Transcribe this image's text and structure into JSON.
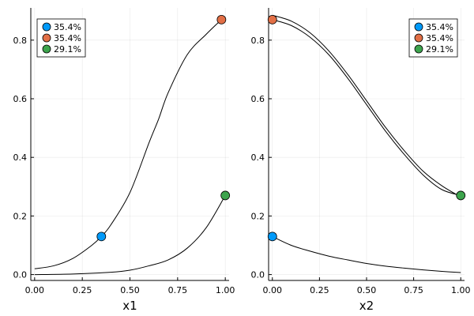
{
  "chart_data": [
    {
      "type": "line",
      "xlabel": "x1",
      "ylabel": "",
      "xlim": [
        -0.02,
        1.02
      ],
      "ylim": [
        -0.02,
        0.91
      ],
      "xticks": [
        0.0,
        0.25,
        0.5,
        0.75,
        1.0
      ],
      "xtick_labels": [
        "0.00",
        "0.25",
        "0.50",
        "0.75",
        "1.00"
      ],
      "yticks": [
        0.0,
        0.2,
        0.4,
        0.6,
        0.8
      ],
      "ytick_labels": [
        "0.0",
        "0.2",
        "0.4",
        "0.6",
        "0.8"
      ],
      "grid": true,
      "legend_position": "top-left",
      "legend": [
        {
          "label": "35.4%",
          "color": "#009AFA"
        },
        {
          "label": "35.4%",
          "color": "#E26F46"
        },
        {
          "label": "29.1%",
          "color": "#3DA44D"
        }
      ],
      "lines": [
        {
          "color": "#000000",
          "points": [
            [
              0.0,
              0.02
            ],
            [
              0.1,
              0.03
            ],
            [
              0.2,
              0.055
            ],
            [
              0.3,
              0.1
            ],
            [
              0.35,
              0.13
            ],
            [
              0.4,
              0.17
            ],
            [
              0.5,
              0.28
            ],
            [
              0.6,
              0.45
            ],
            [
              0.65,
              0.53
            ],
            [
              0.7,
              0.62
            ],
            [
              0.8,
              0.75
            ],
            [
              0.9,
              0.82
            ],
            [
              0.98,
              0.87
            ]
          ]
        },
        {
          "color": "#000000",
          "points": [
            [
              0.0,
              0.0
            ],
            [
              0.2,
              0.002
            ],
            [
              0.4,
              0.008
            ],
            [
              0.5,
              0.015
            ],
            [
              0.6,
              0.03
            ],
            [
              0.7,
              0.05
            ],
            [
              0.8,
              0.09
            ],
            [
              0.9,
              0.16
            ],
            [
              1.0,
              0.27
            ]
          ]
        }
      ],
      "points": [
        {
          "x": 0.35,
          "y": 0.13,
          "color": "#009AFA"
        },
        {
          "x": 0.98,
          "y": 0.87,
          "color": "#E26F46"
        },
        {
          "x": 1.0,
          "y": 0.27,
          "color": "#3DA44D"
        }
      ]
    },
    {
      "type": "line",
      "xlabel": "x2",
      "ylabel": "",
      "xlim": [
        -0.02,
        1.02
      ],
      "ylim": [
        -0.02,
        0.91
      ],
      "xticks": [
        0.0,
        0.25,
        0.5,
        0.75,
        1.0
      ],
      "xtick_labels": [
        "0.00",
        "0.25",
        "0.50",
        "0.75",
        "1.00"
      ],
      "yticks": [
        0.0,
        0.2,
        0.4,
        0.6,
        0.8
      ],
      "ytick_labels": [
        "0.0",
        "0.2",
        "0.4",
        "0.6",
        "0.8"
      ],
      "grid": true,
      "legend_position": "top-right",
      "legend": [
        {
          "label": "35.4%",
          "color": "#009AFA"
        },
        {
          "label": "35.4%",
          "color": "#E26F46"
        },
        {
          "label": "29.1%",
          "color": "#3DA44D"
        }
      ],
      "lines": [
        {
          "color": "#000000",
          "points": [
            [
              0.0,
              0.87
            ],
            [
              0.1,
              0.85
            ],
            [
              0.2,
              0.81
            ],
            [
              0.3,
              0.75
            ],
            [
              0.4,
              0.67
            ],
            [
              0.5,
              0.58
            ],
            [
              0.6,
              0.49
            ],
            [
              0.7,
              0.41
            ],
            [
              0.8,
              0.34
            ],
            [
              0.9,
              0.29
            ],
            [
              1.0,
              0.27
            ]
          ]
        },
        {
          "color": "#000000",
          "points": [
            [
              0.0,
              0.885
            ],
            [
              0.1,
              0.865
            ],
            [
              0.2,
              0.825
            ],
            [
              0.3,
              0.763
            ],
            [
              0.4,
              0.683
            ],
            [
              0.5,
              0.593
            ],
            [
              0.6,
              0.503
            ],
            [
              0.7,
              0.423
            ],
            [
              0.8,
              0.353
            ],
            [
              0.9,
              0.303
            ],
            [
              1.0,
              0.265
            ]
          ]
        },
        {
          "color": "#000000",
          "points": [
            [
              0.0,
              0.13
            ],
            [
              0.1,
              0.1
            ],
            [
              0.2,
              0.08
            ],
            [
              0.3,
              0.063
            ],
            [
              0.4,
              0.05
            ],
            [
              0.5,
              0.038
            ],
            [
              0.6,
              0.029
            ],
            [
              0.7,
              0.022
            ],
            [
              0.8,
              0.016
            ],
            [
              0.9,
              0.011
            ],
            [
              1.0,
              0.007
            ]
          ]
        }
      ],
      "points": [
        {
          "x": 0.0,
          "y": 0.13,
          "color": "#009AFA"
        },
        {
          "x": 0.0,
          "y": 0.87,
          "color": "#E26F46"
        },
        {
          "x": 1.0,
          "y": 0.27,
          "color": "#3DA44D"
        }
      ]
    }
  ]
}
